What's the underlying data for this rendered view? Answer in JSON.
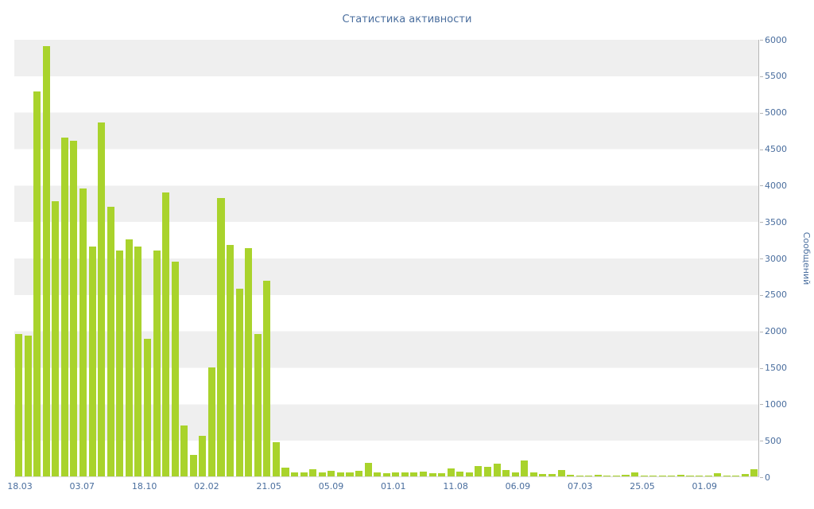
{
  "title": "Статистика активности",
  "colors": {
    "bar": "#a9d32c",
    "band": "#efefef",
    "axis_line": "#b6b6b6",
    "text": "#4a6e9e",
    "background": "#ffffff"
  },
  "chart_data": {
    "type": "bar",
    "title": "Статистика активности",
    "xlabel": "",
    "ylabel": "Сообщений",
    "ylim": [
      0,
      6000
    ],
    "grid": "horizontal-bands",
    "legend": "none",
    "y_ticks": [
      0,
      500,
      1000,
      1500,
      2000,
      2500,
      3000,
      3500,
      4000,
      4500,
      5000,
      5500,
      6000
    ],
    "x_tick_labels": [
      "18.03",
      "03.07",
      "18.10",
      "02.02",
      "21.05",
      "05.09",
      "01.01",
      "11.08",
      "06.09",
      "07.03",
      "25.05",
      "01.09"
    ],
    "values": [
      1950,
      1930,
      5280,
      5900,
      3780,
      4650,
      4600,
      3950,
      3150,
      4850,
      3700,
      3100,
      3250,
      3150,
      1890,
      3100,
      3900,
      2950,
      700,
      300,
      560,
      1500,
      3820,
      3170,
      2570,
      3130,
      1950,
      2680,
      470,
      120,
      60,
      50,
      100,
      60,
      80,
      50,
      50,
      80,
      190,
      50,
      40,
      60,
      50,
      60,
      70,
      40,
      40,
      110,
      70,
      60,
      140,
      130,
      180,
      90,
      60,
      220,
      50,
      30,
      30,
      90,
      20,
      15,
      15,
      20,
      15,
      15,
      20,
      50,
      15,
      10,
      10,
      15,
      25,
      10,
      10,
      15,
      40,
      10,
      15,
      30,
      100
    ]
  }
}
